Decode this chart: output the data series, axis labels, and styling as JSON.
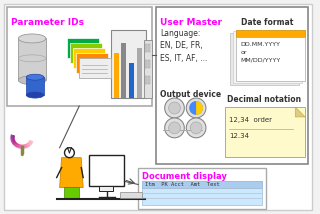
{
  "bg_color": "#f2f2f2",
  "param_label": "Parameter IDs",
  "user_label": "User Master",
  "doc_label": "Document display",
  "lang_text": "Language:\nEN, DE, FR,\nES, IT, AF, ...",
  "date_label": "Date format",
  "date_content": "DD.MM.YYYY\nor\nMM/DD/YYYY",
  "decimal_label": "Decimal notation",
  "decimal_content": "12,34  order",
  "decimal_content2": "12.34",
  "output_label": "Output device",
  "doc_row": "Itm  PK Acct  Amt  Text",
  "accent_color": "#ff00ff",
  "box_edge": "#888888",
  "text_color": "#333333",
  "orange_tab": "#ffaa00",
  "yellow_note": "#fffacc",
  "blue_table": "#cce8ff",
  "blue_header": "#aaccee"
}
